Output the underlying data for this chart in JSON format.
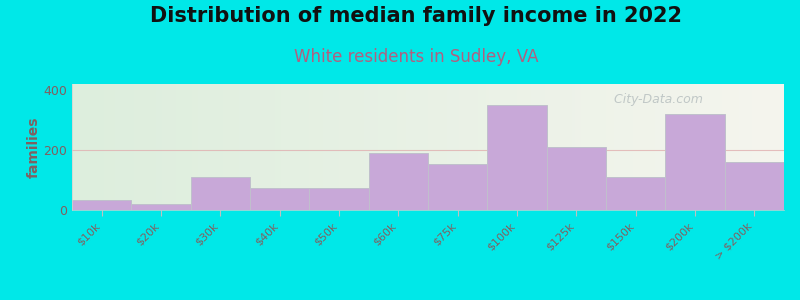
{
  "title": "Distribution of median family income in 2022",
  "subtitle": "White residents in Sudley, VA",
  "ylabel": "families",
  "categories": [
    "$10k",
    "$20k",
    "$30k",
    "$40k",
    "$50k",
    "$60k",
    "$75k",
    "$100k",
    "$125k",
    "$150k",
    "$200k",
    "> $200k"
  ],
  "values": [
    35,
    20,
    110,
    75,
    75,
    190,
    155,
    350,
    210,
    110,
    320,
    160
  ],
  "bar_color": "#c8a8d8",
  "bar_edge_color": "#c0c0cc",
  "background_color": "#00e8e8",
  "plot_bg_left": "#ddeedd",
  "plot_bg_right": "#f5f5ee",
  "yticks": [
    0,
    200,
    400
  ],
  "ylim": [
    0,
    420
  ],
  "title_fontsize": 15,
  "subtitle_fontsize": 12,
  "subtitle_color": "#b06080",
  "watermark": "  City-Data.com",
  "watermark_color": "#b8c0c0",
  "tick_label_color": "#806060",
  "ylabel_color": "#806060"
}
